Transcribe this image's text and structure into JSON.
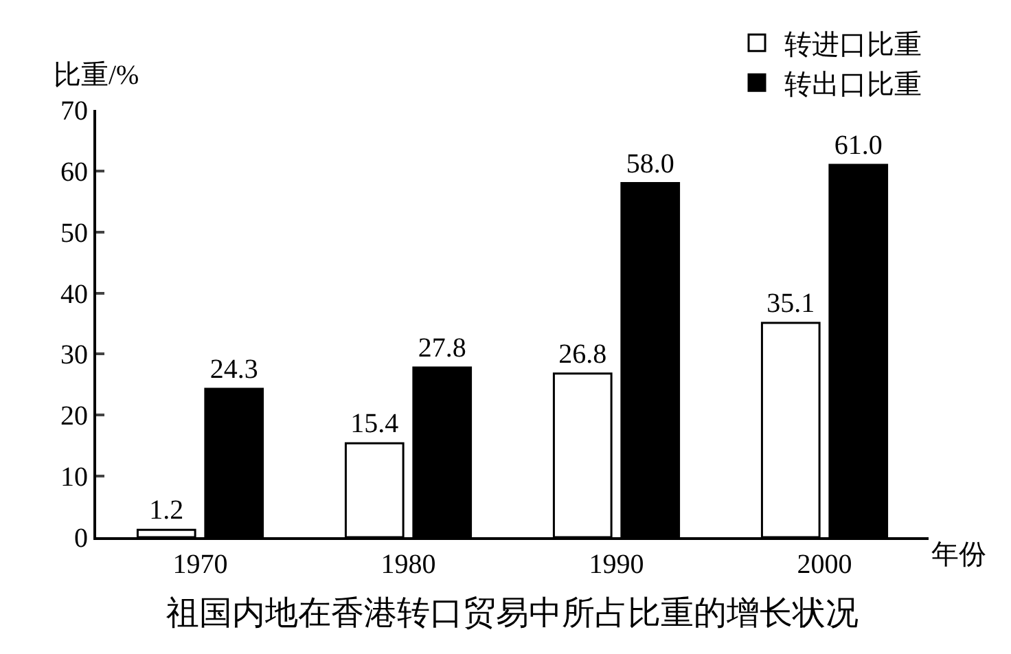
{
  "chart_data": {
    "type": "bar",
    "title": "祖国内地在香港转口贸易中所占比重的增长状况",
    "xlabel": "年份",
    "ylabel": "比重/%",
    "categories": [
      "1970",
      "1980",
      "1990",
      "2000"
    ],
    "series": [
      {
        "name": "转进口比重",
        "color": "#ffffff",
        "values": [
          1.2,
          15.4,
          26.8,
          35.1
        ],
        "value_labels": [
          "1.2",
          "15.4",
          "26.8",
          "35.1"
        ]
      },
      {
        "name": "转出口比重",
        "color": "#000000",
        "values": [
          24.3,
          27.8,
          58.0,
          61.0
        ],
        "value_labels": [
          "24.3",
          "27.8",
          "58.0",
          "61.0"
        ]
      }
    ],
    "ylim": [
      0,
      70
    ],
    "yticks": [
      0,
      10,
      20,
      30,
      40,
      50,
      60,
      70
    ],
    "legend": "top right"
  }
}
